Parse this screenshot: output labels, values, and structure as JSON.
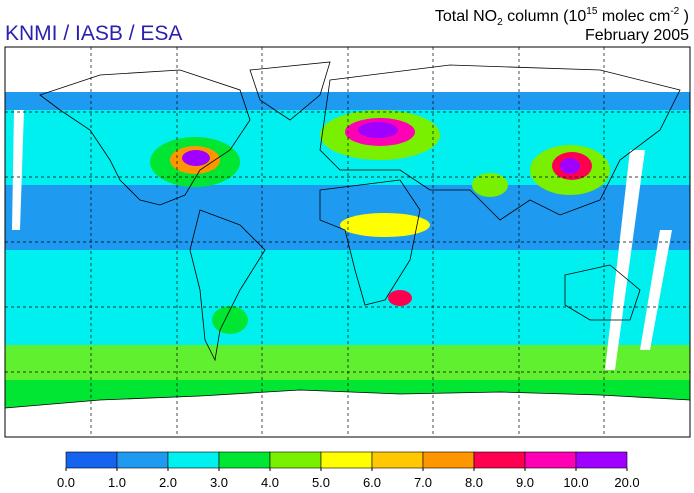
{
  "header": {
    "organization": "KNMI / IASB / ESA",
    "title_parts": [
      "Total NO",
      "2",
      " column (10",
      "15",
      " molec cm",
      "-2",
      " )"
    ],
    "date": "February 2005"
  },
  "colorbar": {
    "ticks": [
      {
        "value": 0,
        "label": "0.0"
      },
      {
        "value": 1,
        "label": "1.0"
      },
      {
        "value": 2,
        "label": "2.0"
      },
      {
        "value": 3,
        "label": "3.0"
      },
      {
        "value": 4,
        "label": "4.0"
      },
      {
        "value": 5,
        "label": "5.0"
      },
      {
        "value": 6,
        "label": "6.0"
      },
      {
        "value": 7,
        "label": "7.0"
      },
      {
        "value": 8,
        "label": "8.0"
      },
      {
        "value": 9,
        "label": "9.0"
      },
      {
        "value": 10,
        "label": "10.0"
      },
      {
        "value": 20,
        "label": "20.0"
      }
    ],
    "colors": [
      "#1464f0",
      "#1e9bf0",
      "#00f0f0",
      "#00e632",
      "#78f000",
      "#ffff00",
      "#ffc800",
      "#ff9600",
      "#ff0050",
      "#ff00b4",
      "#a000ff"
    ]
  }
}
